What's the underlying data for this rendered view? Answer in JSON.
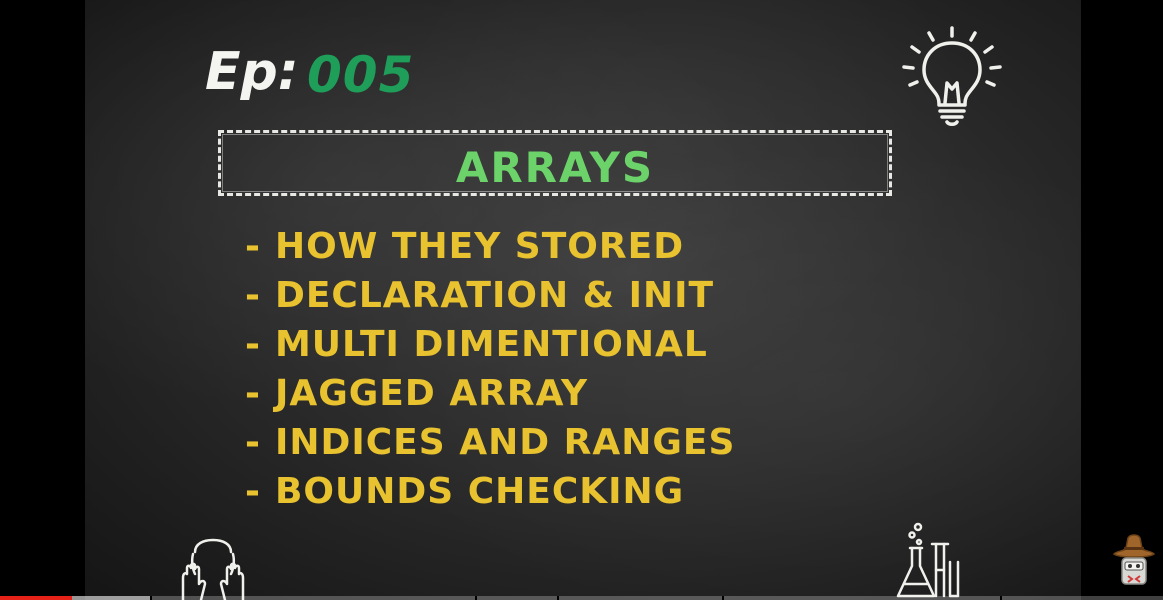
{
  "slide": {
    "episode_label": "Ep:",
    "episode_number": "005",
    "title": "ARRAYS",
    "topics": [
      "HOW THEY STORED",
      "DECLARATION & INIT",
      "MULTI DIMENTIONAL",
      "JAGGED ARRAY",
      "INDICES AND RANGES",
      "BOUNDS CHECKING"
    ],
    "bullet": "-"
  },
  "icons": {
    "top_right": "lightbulb-icon",
    "bottom_left": "hands-over-face-icon",
    "bottom_right": "lab-flask-icon",
    "channel": "cowboy-hat-logo"
  },
  "player": {
    "played_fraction": 0.062,
    "buffered_fraction": 0.129
  },
  "colors": {
    "board": "#2e2e2e",
    "episode_label": "#f4f4f0",
    "episode_number": "#1f9e5a",
    "title": "#6cd36a",
    "topics": "#e8c22f",
    "progress_played": "#e62117"
  }
}
